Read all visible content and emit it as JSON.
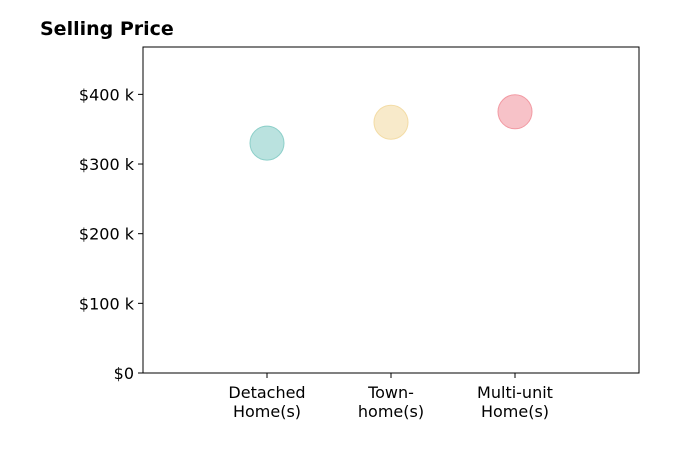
{
  "chart_data": {
    "type": "scatter",
    "title": "Selling Price",
    "xlabel": "",
    "ylabel": "",
    "categories": [
      [
        "Detached",
        "Home(s)"
      ],
      [
        "Town-",
        "home(s)"
      ],
      [
        "Multi-unit",
        "Home(s)"
      ]
    ],
    "values": [
      330000,
      360000,
      375000
    ],
    "colors": [
      "#8ccfc9",
      "#f3dca6",
      "#f29aa3"
    ],
    "yticks": [
      {
        "value": 0,
        "label": "$0"
      },
      {
        "value": 100000,
        "label": "$100 k"
      },
      {
        "value": 200000,
        "label": "$200 k"
      },
      {
        "value": 300000,
        "label": "$300 k"
      },
      {
        "value": 400000,
        "label": "$400 k"
      }
    ],
    "ylim": [
      0,
      468000
    ],
    "xlim": [
      -1,
      3
    ],
    "grid": false,
    "legend": "none"
  }
}
